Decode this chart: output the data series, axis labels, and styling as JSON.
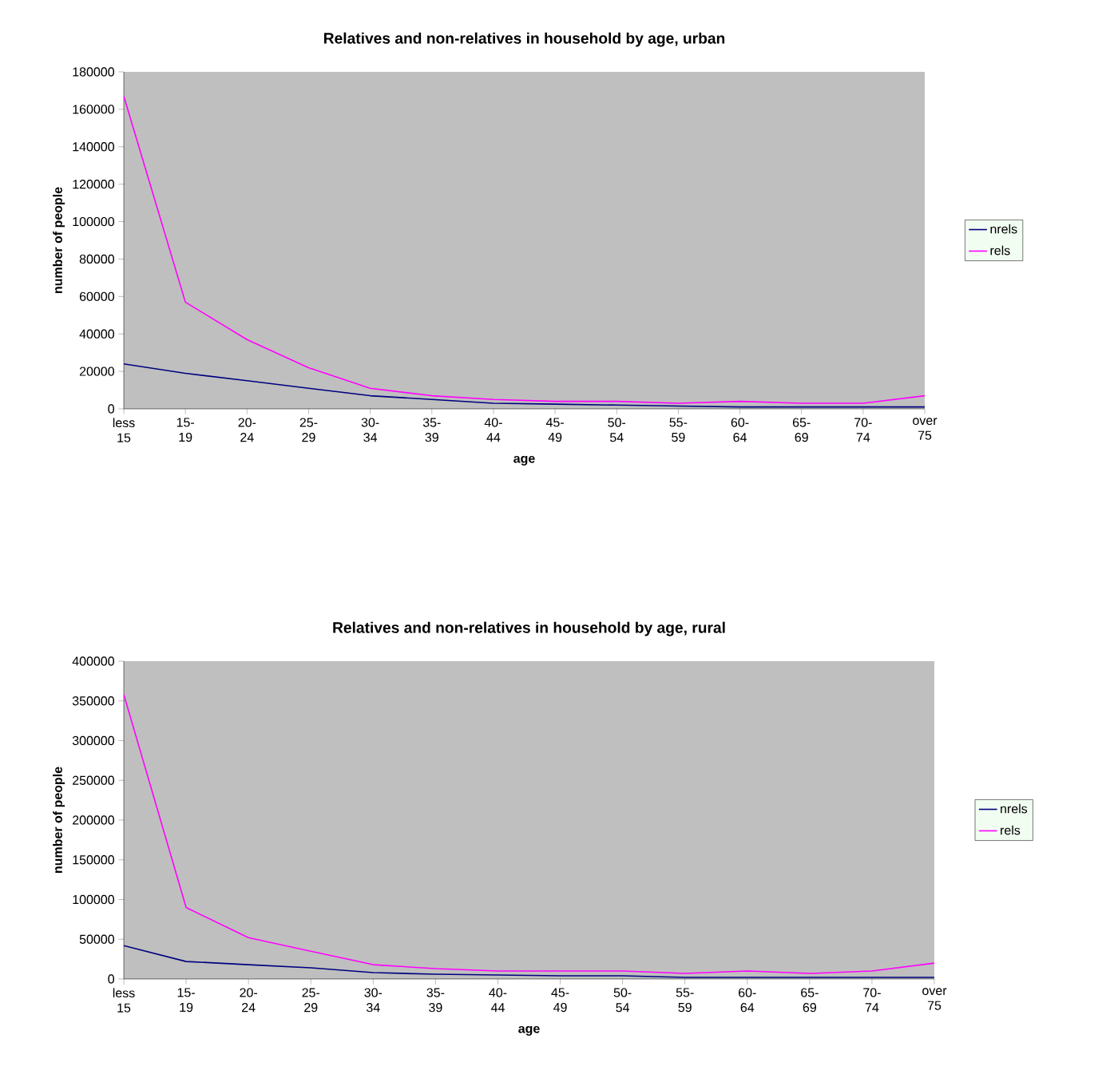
{
  "chart_data": [
    {
      "type": "line",
      "title": "Relatives and non-relatives in household by age, urban",
      "xlabel": "age",
      "ylabel": "number of people",
      "categories": [
        "less 15",
        "15-19",
        "20-24",
        "25-29",
        "30-34",
        "35-39",
        "40-44",
        "45-49",
        "50-54",
        "55-59",
        "60-64",
        "65-69",
        "70-74",
        "over 75"
      ],
      "series": [
        {
          "name": "nrels",
          "color": "#000080",
          "values": [
            24000,
            19000,
            15000,
            11000,
            7000,
            5000,
            3000,
            2500,
            2000,
            1500,
            1000,
            1000,
            1000,
            1000
          ]
        },
        {
          "name": "rels",
          "color": "#ff00ff",
          "values": [
            167000,
            57000,
            37000,
            22000,
            11000,
            7000,
            5000,
            4000,
            4000,
            3000,
            4000,
            3000,
            3000,
            7000
          ]
        }
      ],
      "ylim": [
        0,
        180000
      ],
      "yticks": [
        0,
        20000,
        40000,
        60000,
        80000,
        100000,
        120000,
        140000,
        160000,
        180000
      ],
      "grid": false,
      "legend": "right",
      "marker": "none",
      "line_style": "solid"
    },
    {
      "type": "line",
      "title": "Relatives and non-relatives in household by age, rural",
      "xlabel": "age",
      "ylabel": "number of people",
      "categories": [
        "less 15",
        "15-19",
        "20-24",
        "25-29",
        "30-34",
        "35-39",
        "40-44",
        "45-49",
        "50-54",
        "55-59",
        "60-64",
        "65-69",
        "70-74",
        "over 75"
      ],
      "series": [
        {
          "name": "nrels",
          "color": "#000080",
          "values": [
            42000,
            22000,
            18000,
            14000,
            8000,
            6000,
            5000,
            4000,
            4000,
            2000,
            2000,
            2000,
            2000,
            2000
          ]
        },
        {
          "name": "rels",
          "color": "#ff00ff",
          "values": [
            358000,
            90000,
            52000,
            35000,
            18000,
            13000,
            10000,
            10000,
            10000,
            7000,
            10000,
            7000,
            10000,
            20000
          ]
        }
      ],
      "ylim": [
        0,
        400000
      ],
      "yticks": [
        0,
        50000,
        100000,
        150000,
        200000,
        250000,
        300000,
        350000,
        400000
      ],
      "grid": false,
      "legend": "right",
      "marker": "none",
      "line_style": "solid"
    }
  ]
}
